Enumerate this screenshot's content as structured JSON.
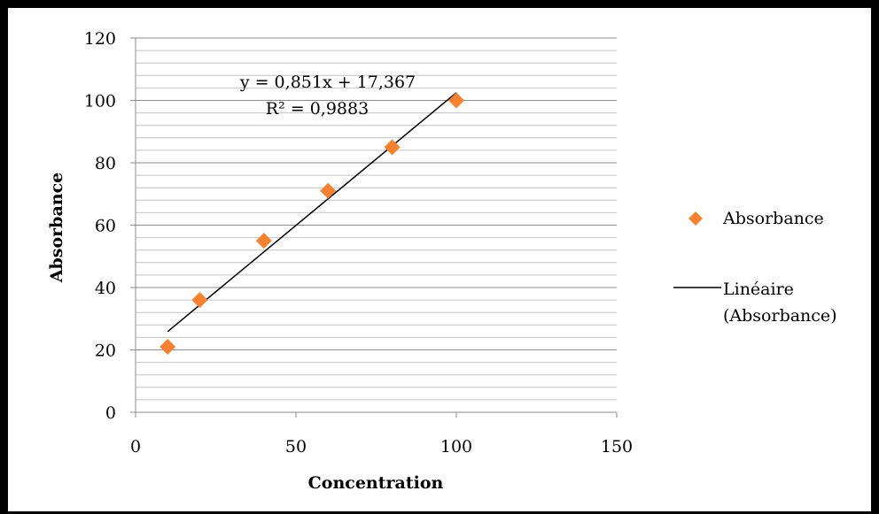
{
  "chart_data": {
    "type": "scatter",
    "title": "",
    "xlabel": "Concentration",
    "ylabel": "Absorbance",
    "xlim": [
      0,
      150
    ],
    "ylim": [
      0,
      120
    ],
    "x_ticks": [
      0,
      50,
      100,
      150
    ],
    "y_ticks": [
      0,
      20,
      40,
      60,
      80,
      100,
      120
    ],
    "x_tick_labels": [
      "0",
      "50",
      "100",
      "150"
    ],
    "y_tick_labels": [
      "0",
      "20",
      "40",
      "60",
      "80",
      "100",
      "120"
    ],
    "grid": "horizontal major and minor",
    "legend_position": "right",
    "series": [
      {
        "name": "Absorbance",
        "marker": "diamond",
        "color": "#f58232",
        "x": [
          10,
          20,
          40,
          60,
          80,
          100
        ],
        "y": [
          21,
          36,
          55,
          71,
          85,
          100
        ]
      }
    ],
    "trendline": {
      "name": "Linéaire (Absorbance)",
      "type": "linear",
      "color": "#000000",
      "slope": 0.851,
      "intercept": 17.367,
      "x_range": [
        10,
        100
      ],
      "equation_text": "y = 0,851x + 17,367",
      "r2_text": "R² = 0,9883"
    },
    "legend": [
      {
        "label": "Absorbance",
        "symbol": "diamond"
      },
      {
        "label_line1": "Linéaire",
        "label_line2": "(Absorbance)",
        "symbol": "line"
      }
    ]
  }
}
